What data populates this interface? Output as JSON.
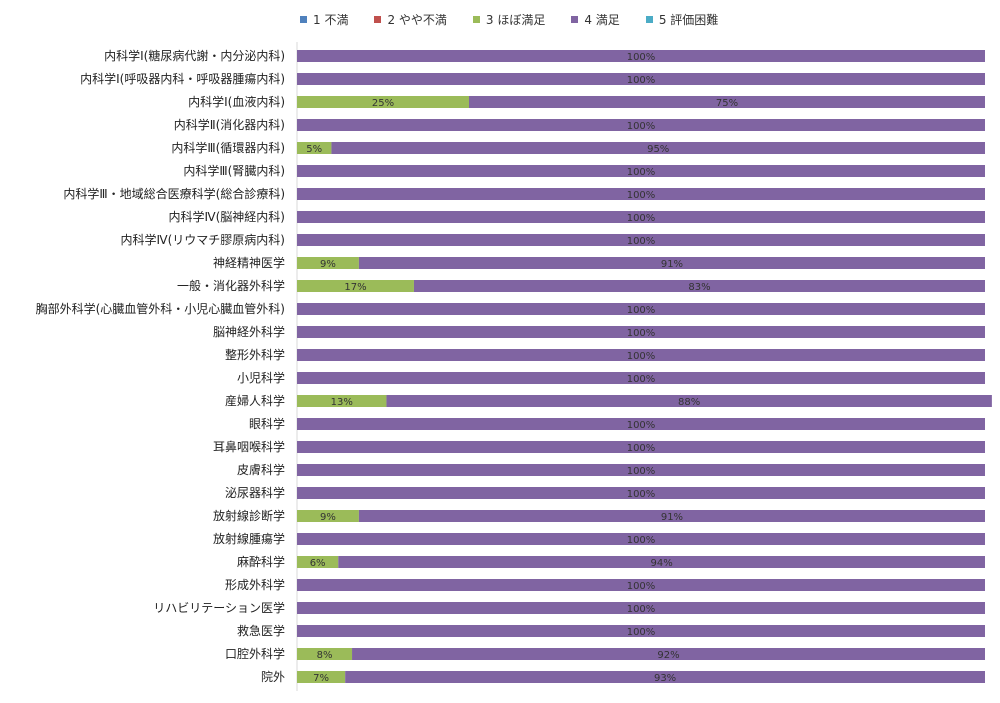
{
  "chart_data": {
    "type": "bar",
    "orientation": "horizontal",
    "stacked": "percent",
    "legend_position": "top",
    "xlim": [
      0,
      100
    ],
    "grid": false,
    "categories": [
      "内科学Ⅰ(糖尿病代謝・内分泌内科)",
      "内科学Ⅰ(呼吸器内科・呼吸器腫瘍内科)",
      "内科学Ⅰ(血液内科)",
      "内科学Ⅱ(消化器内科)",
      "内科学Ⅲ(循環器内科)",
      "内科学Ⅲ(腎臓内科)",
      "内科学Ⅲ・地域総合医療科学(総合診療科)",
      "内科学Ⅳ(脳神経内科)",
      "内科学Ⅳ(リウマチ膠原病内科)",
      "神経精神医学",
      "一般・消化器外科学",
      "胸部外科学(心臓血管外科・小児心臓血管外科)",
      "脳神経外科学",
      "整形外科学",
      "小児科学",
      "産婦人科学",
      "眼科学",
      "耳鼻咽喉科学",
      "皮膚科学",
      "泌尿器科学",
      "放射線診断学",
      "放射線腫瘍学",
      "麻酔科学",
      "形成外科学",
      "リハビリテーション医学",
      "救急医学",
      "口腔外科学",
      "院外"
    ],
    "series": [
      {
        "name": "1 不満",
        "color": "#4F81BD",
        "values": [
          0,
          0,
          0,
          0,
          0,
          0,
          0,
          0,
          0,
          0,
          0,
          0,
          0,
          0,
          0,
          0,
          0,
          0,
          0,
          0,
          0,
          0,
          0,
          0,
          0,
          0,
          0,
          0
        ]
      },
      {
        "name": "2 やや不満",
        "color": "#C0504D",
        "values": [
          0,
          0,
          0,
          0,
          0,
          0,
          0,
          0,
          0,
          0,
          0,
          0,
          0,
          0,
          0,
          0,
          0,
          0,
          0,
          0,
          0,
          0,
          0,
          0,
          0,
          0,
          0,
          0
        ]
      },
      {
        "name": "3 ほぼ満足",
        "color": "#9BBB59",
        "values": [
          0,
          0,
          25,
          0,
          5,
          0,
          0,
          0,
          0,
          9,
          17,
          0,
          0,
          0,
          0,
          13,
          0,
          0,
          0,
          0,
          9,
          0,
          6,
          0,
          0,
          0,
          8,
          7
        ]
      },
      {
        "name": "4 満足",
        "color": "#8064A2",
        "values": [
          100,
          100,
          75,
          100,
          95,
          100,
          100,
          100,
          100,
          91,
          83,
          100,
          100,
          100,
          100,
          88,
          100,
          100,
          100,
          100,
          91,
          100,
          94,
          100,
          100,
          100,
          92,
          93
        ]
      },
      {
        "name": "5 評価困難",
        "color": "#4BACC6",
        "values": [
          0,
          0,
          0,
          0,
          0,
          0,
          0,
          0,
          0,
          0,
          0,
          0,
          0,
          0,
          0,
          0,
          0,
          0,
          0,
          0,
          0,
          0,
          0,
          0,
          0,
          0,
          0,
          0
        ]
      }
    ],
    "value_label_suffix": "%"
  }
}
